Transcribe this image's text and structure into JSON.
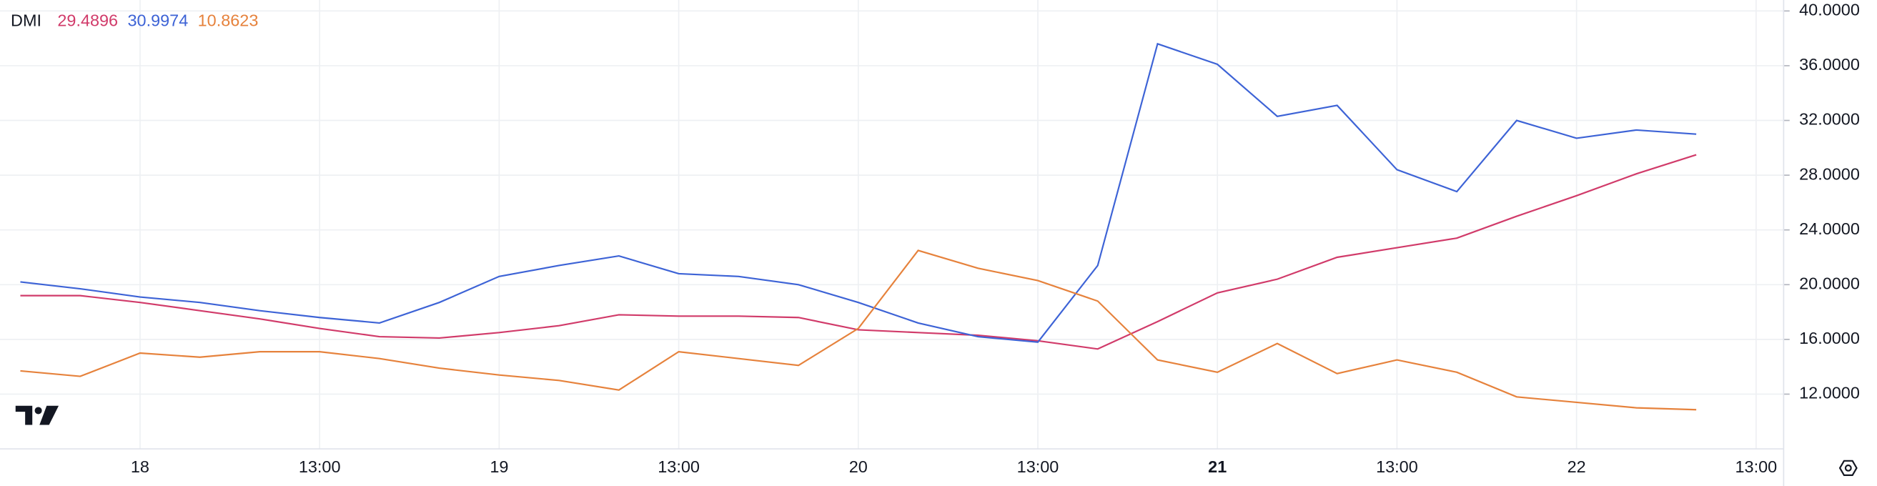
{
  "chart_data": {
    "type": "line",
    "title": "DMI",
    "categories": [
      null,
      null,
      "18",
      null,
      null,
      "13:00",
      null,
      null,
      "19",
      null,
      null,
      "13:00",
      null,
      null,
      "20",
      null,
      null,
      "13:00",
      null,
      null,
      "21",
      null,
      null,
      "13:00",
      null,
      null,
      "22",
      null,
      null,
      "13:00"
    ],
    "series": [
      {
        "color": "#d13b6a",
        "values": [
          19.2,
          19.2,
          18.7,
          18.1,
          17.5,
          16.8,
          16.2,
          16.1,
          16.5,
          17.0,
          17.8,
          17.7,
          17.7,
          17.6,
          16.7,
          16.5,
          16.3,
          15.9,
          15.3,
          17.3,
          19.4,
          20.4,
          22.0,
          22.7,
          23.4,
          25.0,
          26.5,
          28.1,
          29.4896,
          null
        ]
      },
      {
        "color": "#3d63d6",
        "values": [
          20.2,
          19.7,
          19.1,
          18.7,
          18.1,
          17.6,
          17.2,
          18.7,
          20.6,
          21.4,
          22.1,
          20.8,
          20.6,
          20.0,
          18.7,
          17.2,
          16.2,
          15.8,
          21.4,
          37.6,
          36.1,
          32.3,
          33.1,
          28.4,
          26.8,
          32.0,
          30.7,
          31.3,
          30.9974,
          null
        ]
      },
      {
        "color": "#e6823c",
        "values": [
          13.7,
          13.3,
          15.0,
          14.7,
          15.1,
          15.1,
          14.6,
          13.9,
          13.4,
          13.0,
          12.3,
          15.1,
          14.6,
          14.1,
          16.8,
          22.5,
          21.2,
          20.3,
          18.8,
          14.5,
          13.6,
          15.7,
          13.5,
          14.5,
          13.6,
          11.8,
          11.4,
          11.0,
          10.8623,
          null
        ]
      }
    ],
    "ylim": [
      8,
      40.8
    ],
    "yticks": [
      {
        "value": 12,
        "label": "12.0000"
      },
      {
        "value": 16,
        "label": "16.0000"
      },
      {
        "value": 20,
        "label": "20.0000"
      },
      {
        "value": 24,
        "label": "24.0000"
      },
      {
        "value": 28,
        "label": "28.0000"
      },
      {
        "value": 32,
        "label": "32.0000"
      },
      {
        "value": 36,
        "label": "36.0000"
      },
      {
        "value": 40,
        "label": "40.0000"
      }
    ],
    "grid": true
  }
}
